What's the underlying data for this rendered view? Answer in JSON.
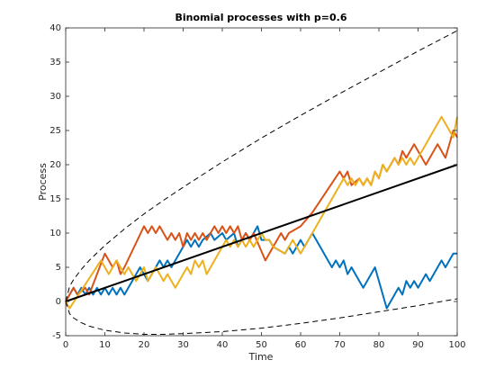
{
  "chart_data": {
    "type": "line",
    "title": "Binomial processes with p=0.6",
    "xlabel": "Time",
    "ylabel": "Process",
    "xlim": [
      0,
      100
    ],
    "xticks": [
      0,
      10,
      20,
      30,
      40,
      50,
      60,
      70,
      80,
      90,
      100
    ],
    "ylim": [
      -5,
      40
    ],
    "yticks": [
      -5,
      0,
      5,
      10,
      15,
      20,
      25,
      30,
      35,
      40
    ],
    "series": [
      {
        "color": "#0072bd",
        "x": [
          0,
          2,
          3,
          4,
          5,
          6,
          7,
          8,
          9,
          10,
          11,
          12,
          13,
          14,
          15,
          19,
          21,
          24,
          25,
          26,
          27,
          31,
          32,
          33,
          34,
          35,
          37,
          38,
          40,
          41,
          43,
          44,
          46,
          47,
          49,
          50,
          52,
          53,
          56,
          57,
          58,
          60,
          61,
          63,
          68,
          69,
          70,
          71,
          72,
          73,
          75,
          76,
          79,
          82,
          85,
          86,
          87,
          88,
          89,
          90,
          92,
          93,
          96,
          97,
          99,
          100
        ],
        "values": [
          0,
          2,
          1,
          2,
          1,
          2,
          1,
          2,
          1,
          2,
          1,
          2,
          1,
          2,
          1,
          5,
          3,
          6,
          5,
          6,
          5,
          9,
          8,
          9,
          8,
          9,
          10,
          9,
          10,
          9,
          10,
          8,
          10,
          9,
          11,
          9,
          9,
          8,
          7,
          8,
          7,
          9,
          8,
          10,
          5,
          6,
          5,
          6,
          4,
          5,
          3,
          2,
          5,
          -1,
          2,
          1,
          3,
          2,
          3,
          2,
          4,
          3,
          6,
          5,
          7,
          7
        ]
      },
      {
        "color": "#d95319",
        "x": [
          0,
          2,
          3,
          5,
          6,
          10,
          12,
          13,
          14,
          15,
          20,
          21,
          22,
          23,
          24,
          26,
          27,
          28,
          29,
          30,
          31,
          32,
          33,
          34,
          35,
          36,
          38,
          39,
          40,
          41,
          42,
          43,
          44,
          45,
          46,
          47,
          48,
          51,
          55,
          56,
          57,
          60,
          63,
          70,
          71,
          72,
          73,
          75,
          76,
          77,
          78,
          79,
          80,
          81,
          82,
          84,
          85,
          86,
          87,
          88,
          89,
          92,
          93,
          95,
          96,
          97,
          99,
          100
        ],
        "values": [
          0,
          2,
          1,
          2,
          1,
          7,
          5,
          6,
          4,
          5,
          11,
          10,
          11,
          10,
          11,
          9,
          10,
          9,
          10,
          8,
          10,
          9,
          10,
          9,
          10,
          9,
          11,
          10,
          11,
          10,
          11,
          10,
          11,
          9,
          10,
          9,
          10,
          6,
          10,
          9,
          10,
          11,
          13,
          19,
          18,
          19,
          17,
          18,
          17,
          18,
          17,
          19,
          18,
          20,
          19,
          21,
          20,
          22,
          21,
          22,
          23,
          20,
          21,
          23,
          22,
          21,
          25,
          24
        ]
      },
      {
        "color": "#edb120",
        "x": [
          0,
          1,
          9,
          11,
          13,
          15,
          16,
          18,
          20,
          21,
          23,
          25,
          26,
          28,
          31,
          32,
          33,
          34,
          35,
          36,
          38,
          41,
          42,
          43,
          44,
          45,
          46,
          47,
          48,
          50,
          51,
          52,
          53,
          56,
          58,
          60,
          64,
          71,
          72,
          73,
          74,
          75,
          76,
          77,
          78,
          79,
          80,
          81,
          82,
          84,
          85,
          86,
          87,
          88,
          89,
          90,
          96,
          99,
          100
        ],
        "values": [
          0,
          -1,
          6,
          4,
          6,
          4,
          5,
          3,
          5,
          3,
          5,
          3,
          4,
          2,
          5,
          4,
          6,
          5,
          6,
          4,
          6,
          9,
          8,
          9,
          8,
          9,
          8,
          9,
          8,
          10,
          9,
          9,
          8,
          7,
          9,
          7,
          11,
          18,
          17,
          18,
          17,
          18,
          17,
          18,
          17,
          19,
          18,
          20,
          19,
          21,
          20,
          21,
          20,
          21,
          20,
          21,
          27,
          24,
          27
        ]
      },
      {
        "color": "#000000",
        "x": [
          0,
          100
        ],
        "values": [
          0,
          20
        ]
      },
      {
        "color": "#000000",
        "linestyle": "dashed",
        "x": [
          0,
          1,
          2,
          4,
          6,
          8,
          10,
          15,
          20,
          25,
          30,
          40,
          50,
          60,
          70,
          80,
          90,
          100
        ],
        "values": [
          0,
          2.2,
          3.2,
          4.7,
          6.0,
          7.1,
          8.2,
          10.6,
          12.8,
          14.8,
          16.7,
          20.4,
          23.9,
          27.2,
          30.4,
          33.5,
          36.6,
          39.6
        ]
      },
      {
        "color": "#000000",
        "linestyle": "dashed",
        "x": [
          0,
          1,
          2,
          4,
          6,
          8,
          10,
          15,
          20,
          25,
          30,
          40,
          50,
          60,
          70,
          80,
          90,
          100
        ],
        "values": [
          0,
          -1.8,
          -2.4,
          -3.1,
          -3.6,
          -3.9,
          -4.2,
          -4.6,
          -4.8,
          -4.8,
          -4.7,
          -4.4,
          -3.9,
          -3.2,
          -2.4,
          -1.5,
          -0.6,
          0.4
        ]
      }
    ]
  }
}
